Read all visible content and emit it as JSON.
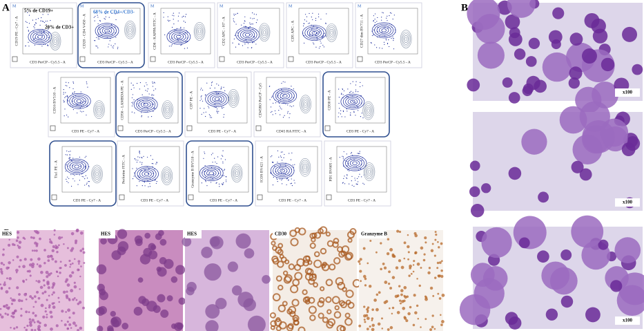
{
  "panels": {
    "A": {
      "label": "A",
      "rows": [
        [
          {
            "marker": "M",
            "y_label": "CD19 PE - Cy7 - A",
            "x_label": "CD3 PerCP - Cy5.5 - A",
            "annotations": [
              "5% de CD19+",
              "20% de CD3+"
            ],
            "highlighted": false
          },
          {
            "marker": "M",
            "y_label": "CD20 - CD4 V450 - A",
            "x_label": "CD3 PerCP - Cy5.5 - A",
            "annotations": [
              "68% de CD4+/CD3-"
            ],
            "highlighted": true
          },
          {
            "marker": "M",
            "y_label": "CD8 - KAPPA FITC - A",
            "x_label": "CD3 PerCP - Cy5.5 - A",
            "highlighted": false
          },
          {
            "marker": "M",
            "y_label": "CD2 APC - H7 - A",
            "x_label": "CD3 PerCP - Cy5.5 - A",
            "highlighted": false
          },
          {
            "marker": "M",
            "y_label": "CD5 APC - A",
            "x_label": "CD3 PerCP - Cy5.5 - A",
            "highlighted": false
          },
          {
            "marker": "M",
            "y_label": "CD27 dim BV711 - A",
            "x_label": "CD3 PerCP - Cy5.5 - A",
            "highlighted": false
          }
        ],
        [
          {
            "y_label": "CD16 BV510 - A",
            "x_label": "CD3 PE - Cy7 - A",
            "highlighted": false
          },
          {
            "y_label": "CD56 - LAMBDA PE - A",
            "x_label": "CD3 PerCP - Cy5.5 - A",
            "highlighted": true
          },
          {
            "y_label": "CD7 PE - A",
            "x_label": "CD3 PE - Cy7 - A",
            "highlighted": false
          },
          {
            "y_label": "CD45RO PerCP - Cy5",
            "x_label": "CD45 RA FITC - A",
            "highlighted": false
          },
          {
            "y_label": "CD30 PE - A",
            "x_label": "CD3 PE - Cy7 - A",
            "highlighted": true
          }
        ],
        [
          {
            "y_label": "Tia1 PE - A",
            "x_label": "CD3 PE - Cy7 - A",
            "highlighted": true
          },
          {
            "y_label": "Perforine FITC - A",
            "x_label": "CD3 PE - Cy7 - A",
            "highlighted": false
          },
          {
            "y_label": "Granzyme B BV510 - A",
            "x_label": "CD3 PE - Cy7 - A",
            "highlighted": true
          },
          {
            "y_label": "ICOS BV421 - A",
            "x_label": "CD3 PE - Cy7 - A",
            "highlighted": false
          },
          {
            "y_label": "PD1 BV605 - A",
            "x_label": "CD3 PE - Cy7 - A",
            "highlighted": false
          }
        ]
      ]
    },
    "B": {
      "label": "B",
      "images": [
        {
          "magnification": "x100"
        },
        {
          "magnification": "x100"
        },
        {
          "magnification": "x100"
        }
      ]
    },
    "C": {
      "label": "C",
      "images": [
        {
          "stain": "HES"
        },
        {
          "stain": "HES"
        },
        {
          "stain": "HES"
        },
        {
          "stain": "CD30"
        },
        {
          "stain": "Granzyme B"
        }
      ]
    }
  }
}
